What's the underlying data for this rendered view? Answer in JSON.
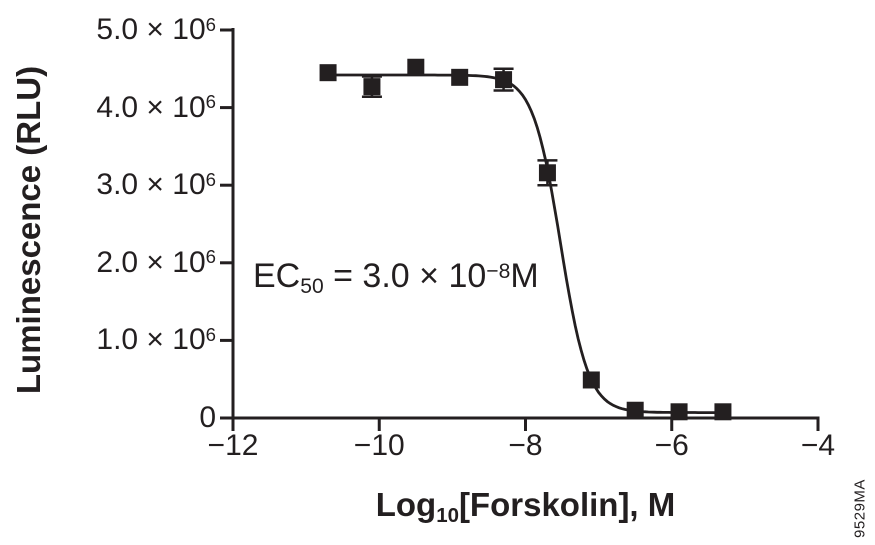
{
  "figure": {
    "ylabel": "Luminescence (RLU)",
    "xlabel_parts": {
      "pre": "Log",
      "sub": "10",
      "post": "[Forskolin], M"
    },
    "annotation": {
      "pre": "EC",
      "sub": "50",
      "mid": " = 3.0 × 10",
      "sup": "−8",
      "post": "M"
    },
    "watermark": "9529MA",
    "ink_color": "#231f20",
    "background": "#ffffff"
  },
  "chart_data": {
    "type": "scatter",
    "title": "",
    "xlabel": "Log10[Forskolin], M",
    "ylabel": "Luminescence (RLU)",
    "grid": false,
    "legend_position": "none",
    "x_axis": {
      "min": -12,
      "max": -4,
      "ticks": [
        {
          "v": -12,
          "label": "−12"
        },
        {
          "v": -10,
          "label": "−10"
        },
        {
          "v": -8,
          "label": "−8"
        },
        {
          "v": -6,
          "label": "−6"
        },
        {
          "v": -4,
          "label": "−4"
        }
      ]
    },
    "y_axis": {
      "min": 0,
      "max": 5000000,
      "ticks": [
        {
          "v": 5000000,
          "main": "5.0 × 10",
          "sup": "6"
        },
        {
          "v": 4000000,
          "main": "4.0 × 10",
          "sup": "6"
        },
        {
          "v": 3000000,
          "main": "3.0 × 10",
          "sup": "6"
        },
        {
          "v": 2000000,
          "main": "2.0 × 10",
          "sup": "6"
        },
        {
          "v": 1000000,
          "main": "1.0 × 10",
          "sup": "6"
        },
        {
          "v": 0,
          "main": "0",
          "sup": ""
        }
      ]
    },
    "series": [
      {
        "name": "forskolin-dose-response",
        "marker": "filled-square",
        "points": [
          {
            "x": -10.7,
            "y": 4450000,
            "err": 0
          },
          {
            "x": -10.1,
            "y": 4270000,
            "err": 130000
          },
          {
            "x": -9.5,
            "y": 4520000,
            "err": 0
          },
          {
            "x": -8.9,
            "y": 4390000,
            "err": 0
          },
          {
            "x": -8.3,
            "y": 4360000,
            "err": 140000
          },
          {
            "x": -7.7,
            "y": 3160000,
            "err": 160000
          },
          {
            "x": -7.1,
            "y": 490000,
            "err": 0
          },
          {
            "x": -6.5,
            "y": 100000,
            "err": 0
          },
          {
            "x": -5.9,
            "y": 80000,
            "err": 0
          },
          {
            "x": -5.3,
            "y": 80000,
            "err": 0
          }
        ]
      }
    ],
    "fit_curve": {
      "model": "sigmoidal-4PL",
      "top": 4420000,
      "bottom": 70000,
      "log_ec50": -7.52,
      "hill_slope": 2.3,
      "x_start": -10.8,
      "x_end": -5.25
    },
    "ec50_label": "EC50 = 3.0 × 10−8 M"
  }
}
